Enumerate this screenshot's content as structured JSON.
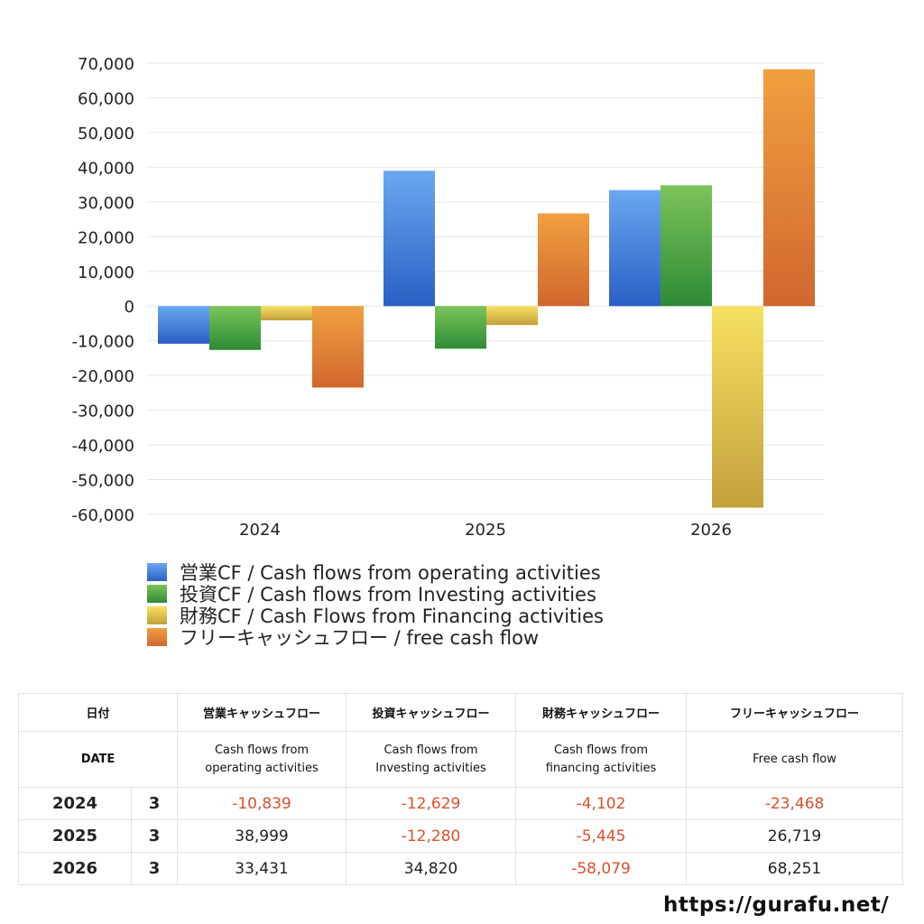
{
  "chart_data": {
    "type": "bar",
    "categories": [
      "2024",
      "2025",
      "2026"
    ],
    "series": [
      {
        "name": "営業CF / Cash flows from operating activities",
        "values": [
          -10839,
          38999,
          33431
        ]
      },
      {
        "name": "投資CF / Cash flows from Investing activities",
        "values": [
          -12629,
          -12280,
          34820
        ]
      },
      {
        "name": "財務CF / Cash Flows from Financing activities",
        "values": [
          -4102,
          -5445,
          -58079
        ]
      },
      {
        "name": "フリーキャッシュフロー / free cash flow",
        "values": [
          -23468,
          26719,
          68251
        ]
      }
    ],
    "ylim": [
      -60000,
      70000
    ],
    "yticks": [
      "70,000",
      "60,000",
      "50,000",
      "40,000",
      "30,000",
      "20,000",
      "10,000",
      "0",
      "-10,000",
      "-20,000",
      "-30,000",
      "-40,000",
      "-50,000",
      "-60,000"
    ],
    "grid": true,
    "legend": "bottom",
    "colors": [
      "#3d7ddb",
      "#4fa544",
      "#e8cd52",
      "#e2873a"
    ]
  },
  "table": {
    "header_jp": [
      "日付",
      "営業キャッシュフロー",
      "投資キャッシュフロー",
      "財務キャッシュフロー",
      "フリーキャッシュフロー"
    ],
    "header_en": [
      "DATE",
      "Cash flows from\noperating activities",
      "Cash flows from\nInvesting activities",
      "Cash flows from\nfinancing activities",
      "Free cash flow"
    ],
    "rows": [
      {
        "year": "2024",
        "month": "3",
        "values": [
          "-10,839",
          "-12,629",
          "-4,102",
          "-23,468"
        ]
      },
      {
        "year": "2025",
        "month": "3",
        "values": [
          "38,999",
          "-12,280",
          "-5,445",
          "26,719"
        ]
      },
      {
        "year": "2026",
        "month": "3",
        "values": [
          "33,431",
          "34,820",
          "-58,079",
          "68,251"
        ]
      }
    ]
  },
  "footer": {
    "url": "https://gurafu.net/"
  }
}
